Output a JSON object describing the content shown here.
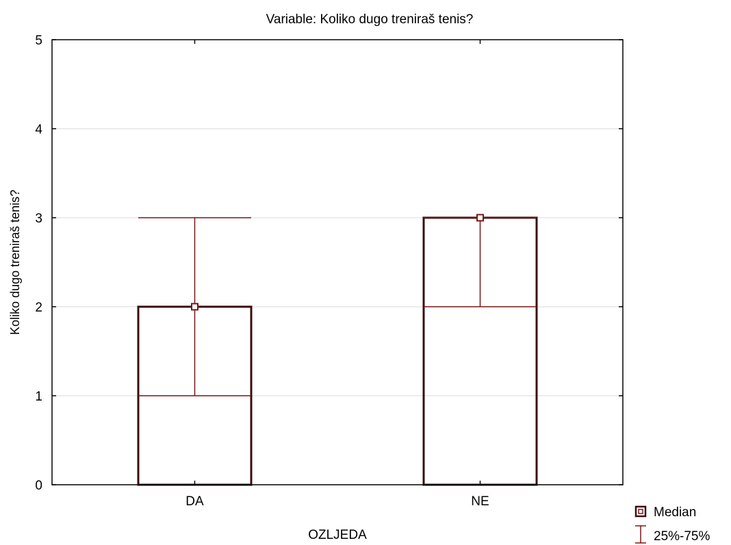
{
  "chart_data": {
    "type": "box",
    "title": "Variable: Koliko dugo treniraš tenis?",
    "xlabel": "OZLJEDA",
    "ylabel": "Koliko dugo treniraš tenis?",
    "ylim": [
      0,
      5
    ],
    "yticks": [
      0,
      1,
      2,
      3,
      4,
      5
    ],
    "grid": true,
    "categories": [
      "DA",
      "NE"
    ],
    "boxes": [
      {
        "category": "DA",
        "median": 2,
        "q1": 1,
        "q3": 3,
        "box_low": 0,
        "box_high": 2
      },
      {
        "category": "NE",
        "median": 3,
        "q1": 2,
        "q3": 3,
        "box_low": 0,
        "box_high": 3
      }
    ],
    "legend": {
      "position": "bottom-right",
      "entries": [
        {
          "label": "Median",
          "marker": "square"
        },
        {
          "label": "25%-75%",
          "marker": "whisker"
        }
      ]
    },
    "colors": {
      "box": "#3b0d0d",
      "marker": "#7a1515",
      "grid": "#d8d8d8",
      "axis": "#000000"
    }
  }
}
